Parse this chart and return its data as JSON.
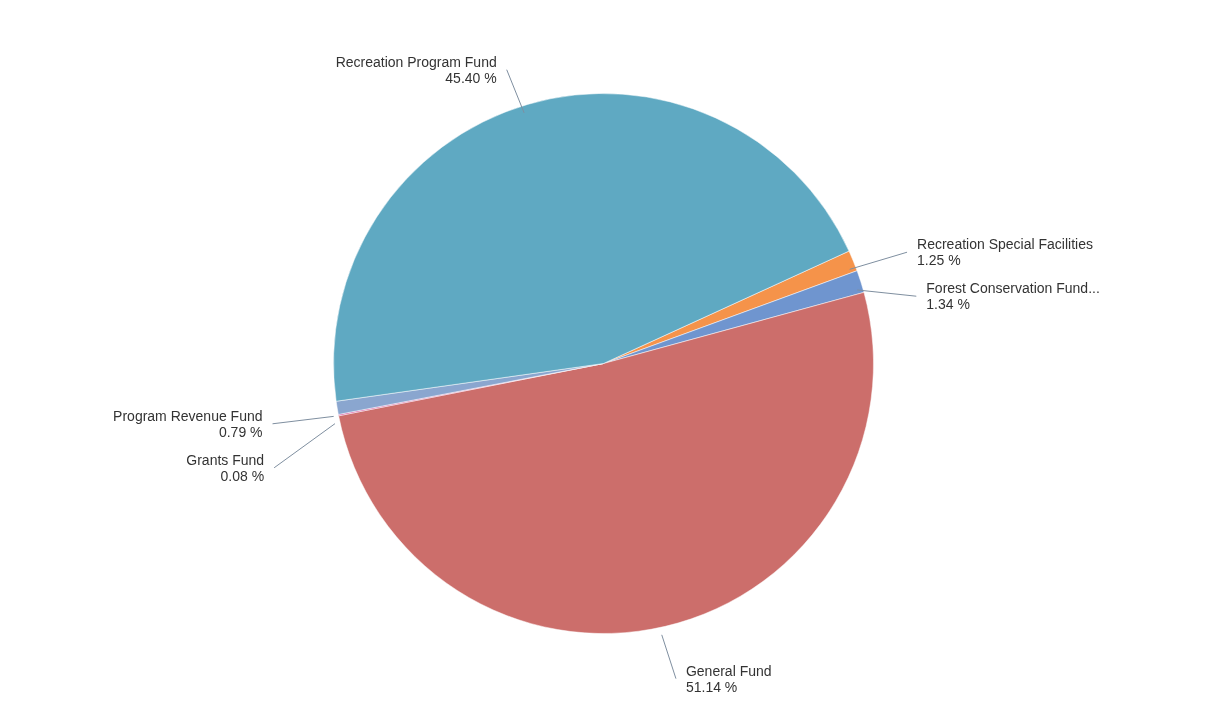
{
  "chart_data": {
    "type": "pie",
    "categories": [
      "Recreation Special Facilities",
      "Forest Conservation Fund...",
      "General Fund",
      "Grants Fund",
      "Program Revenue Fund",
      "Recreation Program Fund"
    ],
    "values": [
      1.25,
      1.34,
      51.14,
      0.08,
      0.79,
      45.4
    ],
    "value_labels": [
      "1.25 %",
      "1.34 %",
      "51.14 %",
      "0.08 %",
      "0.79 %",
      "45.40 %"
    ],
    "colors": [
      "#f5934a",
      "#6f95cf",
      "#cc6e6b",
      "#d8509a",
      "#8aa6cf",
      "#5fa9c2"
    ]
  }
}
